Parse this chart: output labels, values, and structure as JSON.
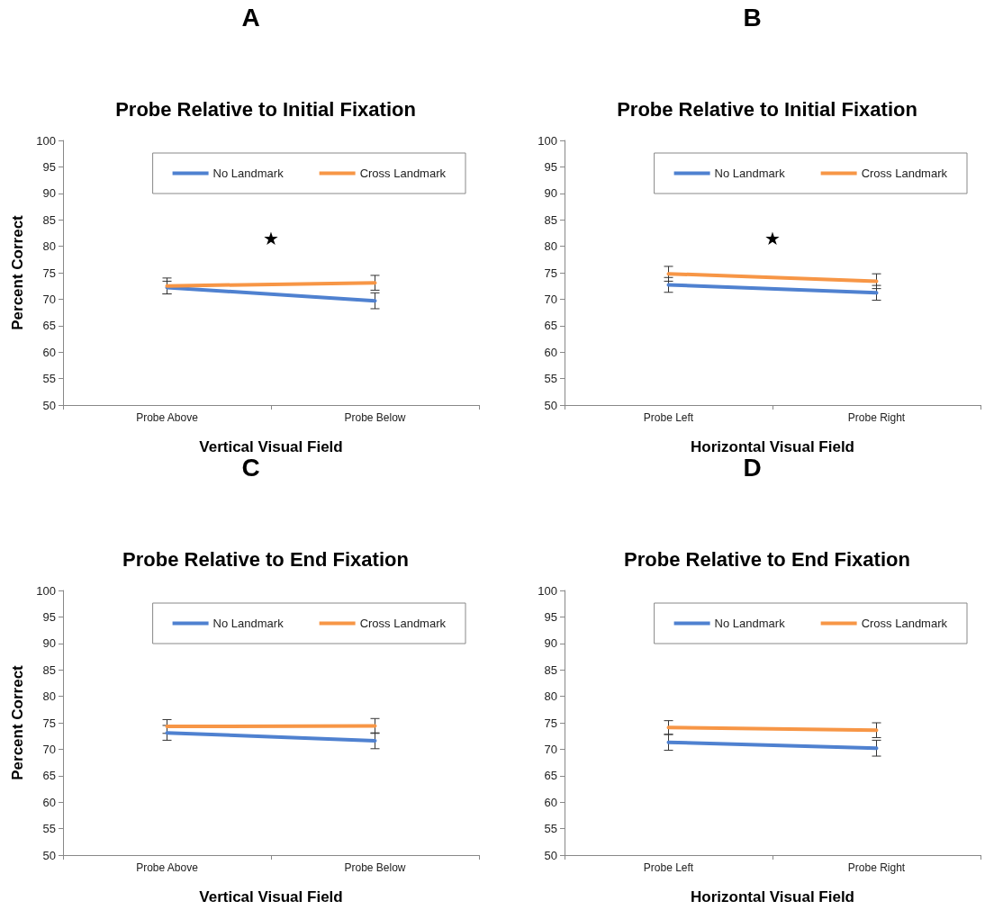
{
  "chart_data": [
    {
      "type": "line",
      "title": "A",
      "subtitle": "Probe Relative to Initial Fixation",
      "xlabel": "Vertical Visual Field",
      "ylabel": "Percent Correct",
      "categories": [
        "Probe Above",
        "Probe Below"
      ],
      "ylim": [
        50,
        100
      ],
      "yticks": [
        50,
        55,
        60,
        65,
        70,
        75,
        80,
        85,
        90,
        95,
        100
      ],
      "grid": false,
      "legend": "top right",
      "marker": "none",
      "line_style": "solid",
      "series": [
        {
          "name": "No Landmark",
          "color": "#4f81d0",
          "values": [
            72.2,
            69.7
          ],
          "errors": [
            1.2,
            1.5
          ]
        },
        {
          "name": "Cross Landmark",
          "color": "#f79646",
          "values": [
            72.5,
            73.1
          ],
          "errors": [
            1.5,
            1.4
          ]
        }
      ],
      "annotations": [
        "★"
      ]
    },
    {
      "type": "line",
      "title": "B",
      "subtitle": "Probe Relative to Initial Fixation",
      "xlabel": "Horizontal Visual Field",
      "categories": [
        "Probe Left",
        "Probe Right"
      ],
      "ylim": [
        50,
        100
      ],
      "yticks": [
        50,
        55,
        60,
        65,
        70,
        75,
        80,
        85,
        90,
        95,
        100
      ],
      "grid": false,
      "legend": "top right",
      "marker": "none",
      "line_style": "solid",
      "series": [
        {
          "name": "No Landmark",
          "color": "#4f81d0",
          "values": [
            72.7,
            71.2
          ],
          "errors": [
            1.4,
            1.4
          ]
        },
        {
          "name": "Cross Landmark",
          "color": "#f79646",
          "values": [
            74.8,
            73.4
          ],
          "errors": [
            1.4,
            1.4
          ]
        }
      ],
      "annotations": [
        "★"
      ]
    },
    {
      "type": "line",
      "title": "C",
      "subtitle": "Probe Relative to End Fixation",
      "xlabel": "Vertical Visual Field",
      "ylabel": "Percent Correct",
      "categories": [
        "Probe Above",
        "Probe Below"
      ],
      "ylim": [
        50,
        100
      ],
      "yticks": [
        50,
        55,
        60,
        65,
        70,
        75,
        80,
        85,
        90,
        95,
        100
      ],
      "grid": false,
      "legend": "top right",
      "marker": "none",
      "line_style": "solid",
      "series": [
        {
          "name": "No Landmark",
          "color": "#4f81d0",
          "values": [
            73.1,
            71.6
          ],
          "errors": [
            1.4,
            1.5
          ]
        },
        {
          "name": "Cross Landmark",
          "color": "#f79646",
          "values": [
            74.3,
            74.4
          ],
          "errors": [
            1.3,
            1.4
          ]
        }
      ]
    },
    {
      "type": "line",
      "title": "D",
      "subtitle": "Probe Relative to End Fixation",
      "xlabel": "Horizontal Visual Field",
      "categories": [
        "Probe Left",
        "Probe Right"
      ],
      "ylim": [
        50,
        100
      ],
      "yticks": [
        50,
        55,
        60,
        65,
        70,
        75,
        80,
        85,
        90,
        95,
        100
      ],
      "grid": false,
      "legend": "top right",
      "marker": "none",
      "line_style": "solid",
      "series": [
        {
          "name": "No Landmark",
          "color": "#4f81d0",
          "values": [
            71.3,
            70.2
          ],
          "errors": [
            1.5,
            1.5
          ]
        },
        {
          "name": "Cross Landmark",
          "color": "#f79646",
          "values": [
            74.1,
            73.6
          ],
          "errors": [
            1.3,
            1.4
          ]
        }
      ]
    }
  ]
}
